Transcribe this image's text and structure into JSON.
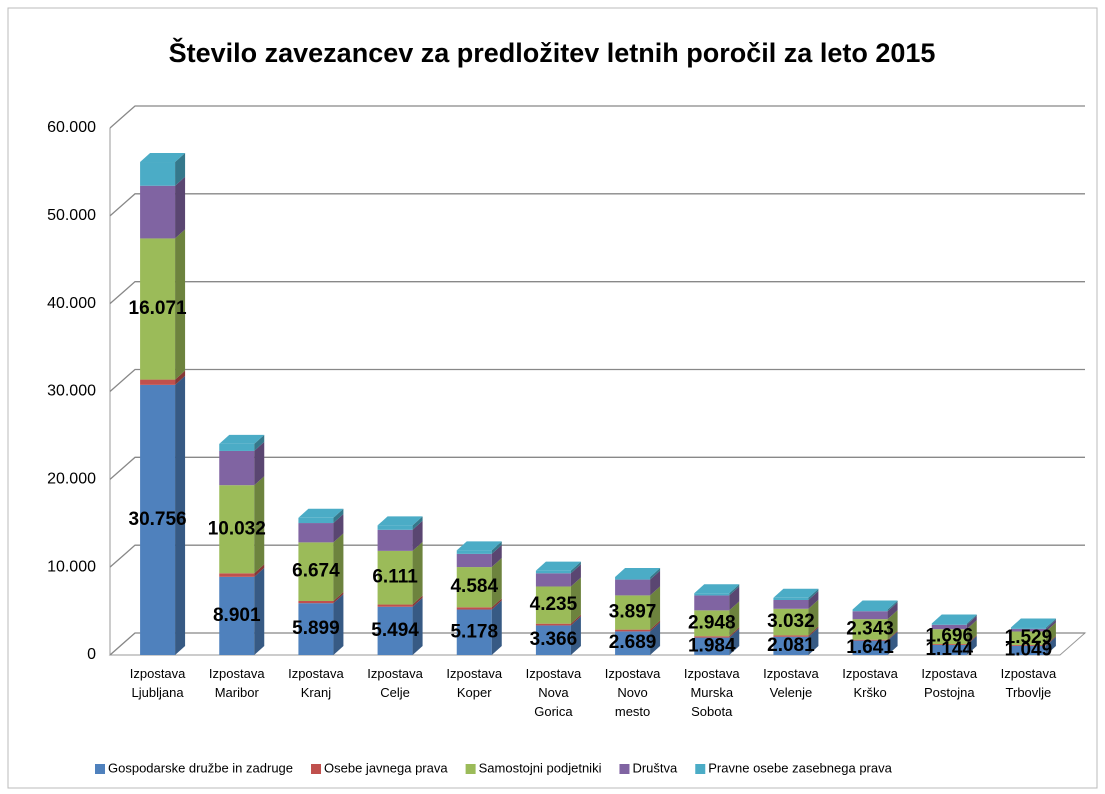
{
  "chart_data": {
    "type": "bar3d_stacked",
    "title": "Število zavezancev za predložitev letnih poročil za leto 2015",
    "categories": [
      "Izpostava Ljubljana",
      "Izpostava Maribor",
      "Izpostava Kranj",
      "Izpostava Celje",
      "Izpostava Koper",
      "Izpostava Nova Gorica",
      "Izpostava Novo mesto",
      "Izpostava Murska Sobota",
      "Izpostava Velenje",
      "Izpostava Krško",
      "Izpostava Postojna",
      "Izpostava Trbovlje"
    ],
    "series": [
      {
        "name": "Gospodarske družbe in zadruge",
        "color": "#4f81bd",
        "values": [
          30756,
          8901,
          5899,
          5494,
          5178,
          3366,
          2689,
          1984,
          2081,
          1641,
          1144,
          1049
        ],
        "value_labels": [
          "30.756",
          "8.901",
          "5.899",
          "5.494",
          "5.178",
          "3.366",
          "2.689",
          "1.984",
          "2.081",
          "1.641",
          "1.144",
          "1.049"
        ]
      },
      {
        "name": "Osebe javnega prava",
        "color": "#c0504d",
        "values": [
          600,
          400,
          250,
          250,
          250,
          200,
          200,
          150,
          150,
          100,
          100,
          100
        ]
      },
      {
        "name": "Samostojni podjetniki",
        "color": "#9bbb59",
        "values": [
          16071,
          10032,
          6674,
          6111,
          4584,
          4235,
          3897,
          2948,
          3032,
          2343,
          1696,
          1529
        ],
        "value_labels": [
          "16.071",
          "10.032",
          "6.674",
          "6.111",
          "4.584",
          "4.235",
          "3.897",
          "2.948",
          "3.032",
          "2.343",
          "1.696",
          "1.529"
        ]
      },
      {
        "name": "Društva",
        "color": "#8064a2",
        "values": [
          6000,
          3900,
          2200,
          2400,
          1500,
          1500,
          1800,
          1700,
          1000,
          900,
          500,
          300
        ]
      },
      {
        "name": "Pravne osebe zasebnega prava",
        "color": "#4bacc6",
        "values": [
          2700,
          800,
          600,
          500,
          400,
          300,
          300,
          250,
          250,
          200,
          150,
          150
        ]
      }
    ],
    "ylim": [
      0,
      60000
    ],
    "yticks": [
      0,
      {
        "value": 10000,
        "label": "10.000"
      },
      {
        "value": 20000,
        "label": "20.000"
      },
      {
        "value": 30000,
        "label": "30.000"
      },
      {
        "value": 40000,
        "label": "40.000"
      },
      {
        "value": 50000,
        "label": "50.000"
      },
      {
        "value": 60000,
        "label": "60.000"
      }
    ],
    "grid": true,
    "legend": "bottom"
  }
}
